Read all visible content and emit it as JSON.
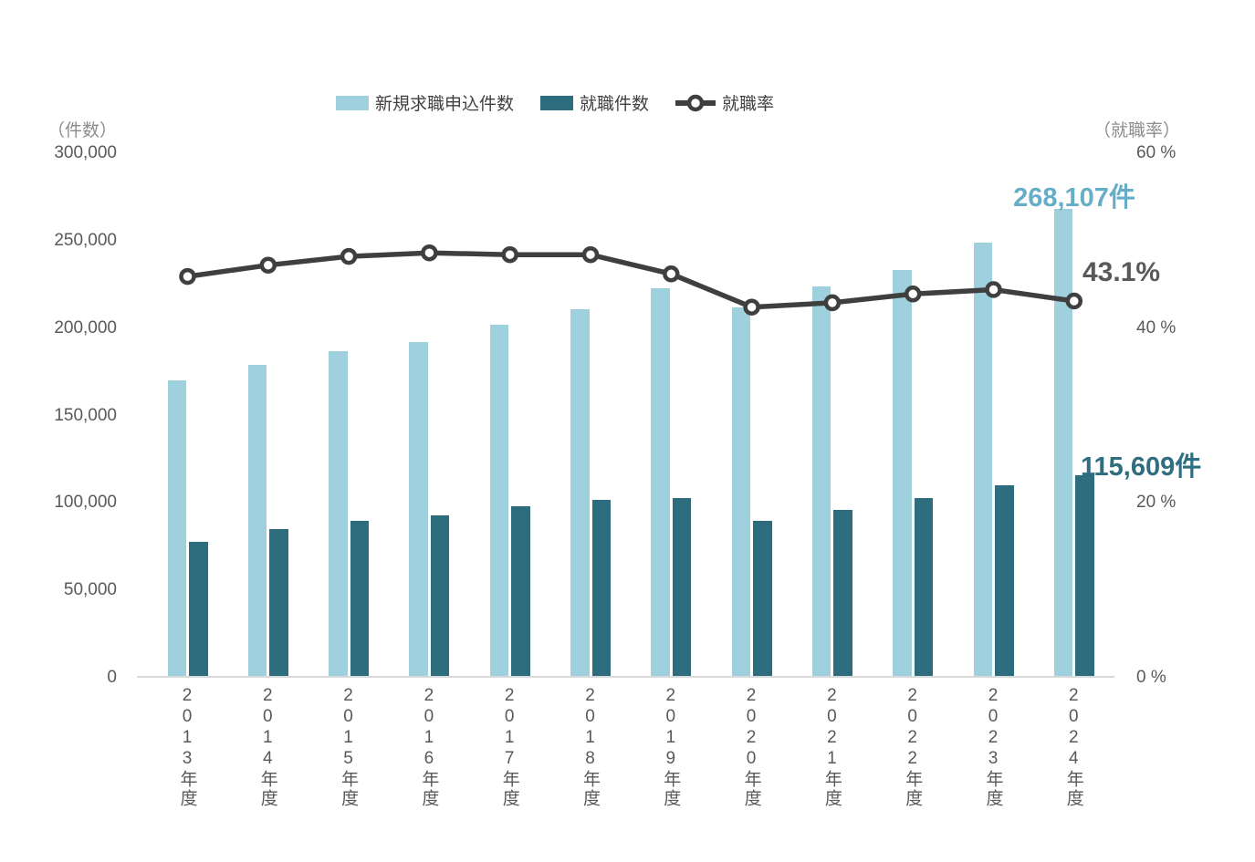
{
  "colors": {
    "bar_applications": "#9fd0dd",
    "bar_placements": "#2e6d7e",
    "rate_line": "#3f3f3f",
    "marker_fill": "#ffffff",
    "axis_line": "#d9d9d9",
    "tick_text": "#595959",
    "legend_text": "#404040",
    "axis_header_text": "#8c8c8c",
    "annotation_applications": "#66adc7",
    "annotation_placements": "#2e6e80",
    "annotation_rate": "#595959"
  },
  "chart_data": {
    "type": "combo-bar-line",
    "grid": false,
    "legend_position": "top",
    "categories": [
      "2013年度",
      "2014年度",
      "2015年度",
      "2016年度",
      "2017年度",
      "2018年度",
      "2019年度",
      "2020年度",
      "2021年度",
      "2022年度",
      "2023年度",
      "2024年度"
    ],
    "series": [
      {
        "name": "新規求職申込件数",
        "type": "bar",
        "axis": "left",
        "values": [
          170000,
          179000,
          187000,
          192000,
          202000,
          211000,
          223000,
          212000,
          224000,
          233000,
          249000,
          268107
        ]
      },
      {
        "name": "就職件数",
        "type": "bar",
        "axis": "left",
        "values": [
          78000,
          85000,
          90000,
          93000,
          98000,
          102000,
          103000,
          90000,
          96000,
          103000,
          110000,
          115609
        ]
      },
      {
        "name": "就職率",
        "type": "line",
        "axis": "right",
        "values": [
          45.9,
          47.2,
          48.2,
          48.6,
          48.4,
          48.4,
          46.2,
          42.4,
          42.9,
          43.9,
          44.4,
          43.1
        ]
      }
    ],
    "left_axis": {
      "label": "（件数）",
      "range": [
        0,
        300000
      ],
      "ticks": [
        "300,000",
        "250,000",
        "200,000",
        "150,000",
        "100,000",
        "50,000",
        "0"
      ]
    },
    "right_axis": {
      "label": "（就職率）",
      "range": [
        0,
        60
      ],
      "ticks": [
        "60 %",
        "40 %",
        "20 %",
        "0 %"
      ]
    },
    "annotations": {
      "applications_2024": "268,107件",
      "rate_2024": "43.1%",
      "placements_2024": "115,609件"
    }
  }
}
